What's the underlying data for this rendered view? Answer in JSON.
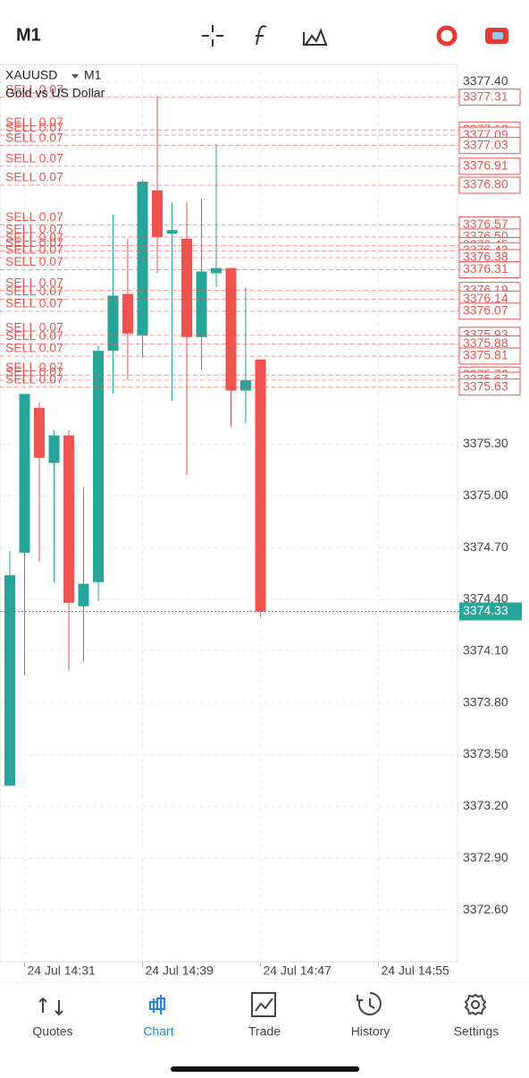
{
  "header": {
    "timeframe": "M1"
  },
  "chart_data": {
    "type": "candlestick",
    "symbol": "XAUUSD",
    "timeframe": "M1",
    "subtitle": "Gold vs US Dollar",
    "up_color": "#26a69a",
    "down_color": "#ef5350",
    "grid": true,
    "categories": [
      null,
      "24 Jul 14:31",
      null,
      null,
      null,
      null,
      null,
      null,
      null,
      "24 Jul 14:39",
      null,
      null,
      null,
      null,
      null,
      null,
      null,
      "24 Jul 14:47",
      null,
      null,
      null,
      null,
      null,
      null,
      null,
      "24 Jul 14:55"
    ],
    "open": [
      3373.32,
      3374.67,
      3375.51,
      3375.19,
      3375.35,
      3374.36,
      3374.5,
      3375.84,
      3376.17,
      3375.93,
      3376.77,
      3376.52,
      3376.49,
      3375.92,
      3376.29,
      3376.32,
      3375.61,
      3375.79,
      null,
      null,
      null,
      null,
      null,
      null,
      null,
      null
    ],
    "high": [
      3374.68,
      3375.59,
      3375.54,
      3375.38,
      3375.38,
      3375.05,
      3375.87,
      3376.63,
      3376.49,
      3376.83,
      3377.32,
      3376.7,
      3376.7,
      3376.72,
      3377.04,
      3376.32,
      3376.21,
      3375.79,
      null,
      null,
      null,
      null,
      null,
      null,
      null,
      null
    ],
    "low": [
      3373.32,
      3373.96,
      3374.62,
      3374.5,
      3373.99,
      3374.04,
      3374.39,
      3375.59,
      3375.67,
      3375.8,
      3376.29,
      3375.55,
      3375.12,
      3375.73,
      3376.21,
      3375.4,
      3375.42,
      3374.3,
      null,
      null,
      null,
      null,
      null,
      null,
      null,
      null
    ],
    "close": [
      3374.54,
      3375.59,
      3375.22,
      3375.35,
      3374.38,
      3374.49,
      3375.84,
      3376.16,
      3375.94,
      3376.82,
      3376.5,
      3376.54,
      3375.92,
      3376.3,
      3376.32,
      3375.61,
      3375.67,
      3374.33,
      null,
      null,
      null,
      null,
      null,
      null,
      null,
      null
    ],
    "ylim": [
      3372.3,
      3377.5
    ],
    "yticks": [
      {
        "value": 3377.4,
        "label": "3377.40"
      },
      {
        "value": 3375.3,
        "label": "3375.30"
      },
      {
        "value": 3375,
        "label": "3375.00"
      },
      {
        "value": 3374.7,
        "label": "3374.70"
      },
      {
        "value": 3374.4,
        "label": "3374.40"
      },
      {
        "value": 3374.1,
        "label": "3374.10"
      },
      {
        "value": 3373.8,
        "label": "3373.80"
      },
      {
        "value": 3373.5,
        "label": "3373.50"
      },
      {
        "value": 3373.2,
        "label": "3373.20"
      },
      {
        "value": 3372.9,
        "label": "3372.90"
      },
      {
        "value": 3372.6,
        "label": "3372.60"
      }
    ],
    "current_price": {
      "value": 3374.33,
      "label": "3374.33",
      "color": "#26a69a"
    },
    "order_color": "#ef5350",
    "orders": [
      {
        "price": 3377.31,
        "price_label": "3377.31",
        "label": "SELL 0.07"
      },
      {
        "price": 3377.12,
        "price_label": "3377.12",
        "label": "SELL 0.07"
      },
      {
        "price": 3377.09,
        "price_label": "3377.09",
        "label": "SELL 0.07"
      },
      {
        "price": 3377.03,
        "price_label": "3377.03",
        "label": "SELL 0.07"
      },
      {
        "price": 3376.91,
        "price_label": "3376.91",
        "label": "SELL 0.07"
      },
      {
        "price": 3376.8,
        "price_label": "3376.80",
        "label": "SELL 0.07"
      },
      {
        "price": 3376.57,
        "price_label": "3376.57",
        "label": "SELL 0.07"
      },
      {
        "price": 3376.5,
        "price_label": "3376.50",
        "label": "SELL 0.07"
      },
      {
        "price": 3376.45,
        "price_label": "3376.45",
        "label": "SELL 0.07"
      },
      {
        "price": 3376.42,
        "price_label": "3376.42",
        "label": "SELL 0.07"
      },
      {
        "price": 3376.38,
        "price_label": "3376.38",
        "label": "SELL 0.07"
      },
      {
        "price": 3376.31,
        "price_label": "3376.31",
        "label": "SELL 0.07"
      },
      {
        "price": 3376.19,
        "price_label": "3376.19",
        "label": "SELL 0.07"
      },
      {
        "price": 3376.14,
        "price_label": "3376.14",
        "label": "SELL 0.07"
      },
      {
        "price": 3376.07,
        "price_label": "3376.07",
        "label": "SELL 0.07"
      },
      {
        "price": 3375.93,
        "price_label": "3375.93",
        "label": "SELL 0.07"
      },
      {
        "price": 3375.88,
        "price_label": "3375.88",
        "label": "SELL 0.07"
      },
      {
        "price": 3375.81,
        "price_label": "3375.81",
        "label": "SELL 0.07"
      },
      {
        "price": 3375.7,
        "price_label": "3375.70",
        "label": "SELL 0.07"
      },
      {
        "price": 3375.67,
        "price_label": "3375.67",
        "label": "SELL 0.07"
      },
      {
        "price": 3375.63,
        "price_label": "3375.63",
        "label": "SELL 0.07"
      }
    ]
  },
  "nav": {
    "active": 1,
    "active_color": "#1e88e5",
    "items": [
      "Quotes",
      "Chart",
      "Trade",
      "History",
      "Settings"
    ]
  }
}
